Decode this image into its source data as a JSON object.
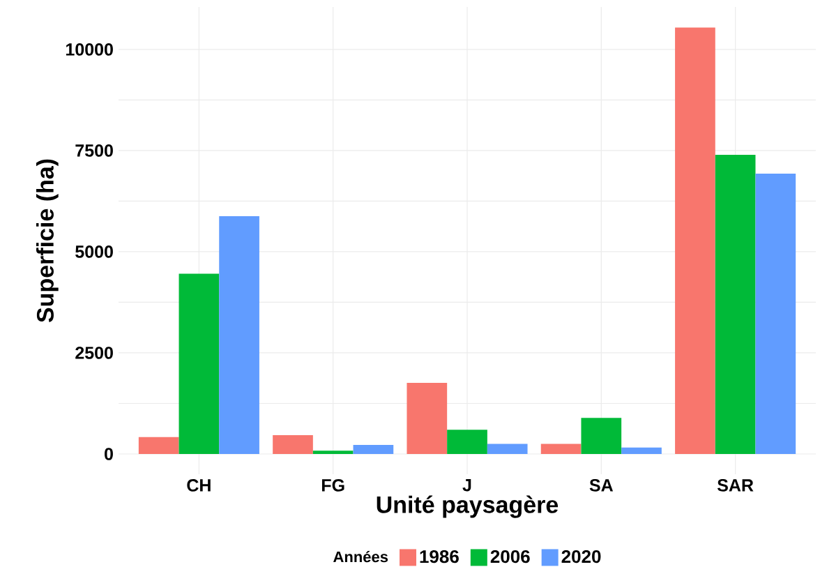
{
  "chart_data": {
    "type": "bar",
    "xlabel": "Unité paysagère",
    "ylabel": "Superficie (ha)",
    "legend_title": "Années",
    "categories": [
      "CH",
      "FG",
      "J",
      "SA",
      "SAR"
    ],
    "series": [
      {
        "name": "1986",
        "color": "#f8766d",
        "values": [
          420,
          465,
          1760,
          250,
          10540
        ]
      },
      {
        "name": "2006",
        "color": "#00ba38",
        "values": [
          4455,
          80,
          600,
          890,
          7395
        ]
      },
      {
        "name": "2020",
        "color": "#619cff",
        "values": [
          5880,
          225,
          250,
          160,
          6930
        ]
      }
    ],
    "ylim": [
      -500,
      11050
    ],
    "yticks": [
      0,
      2500,
      5000,
      7500,
      10000
    ],
    "grid": true,
    "legend": "bottom"
  }
}
